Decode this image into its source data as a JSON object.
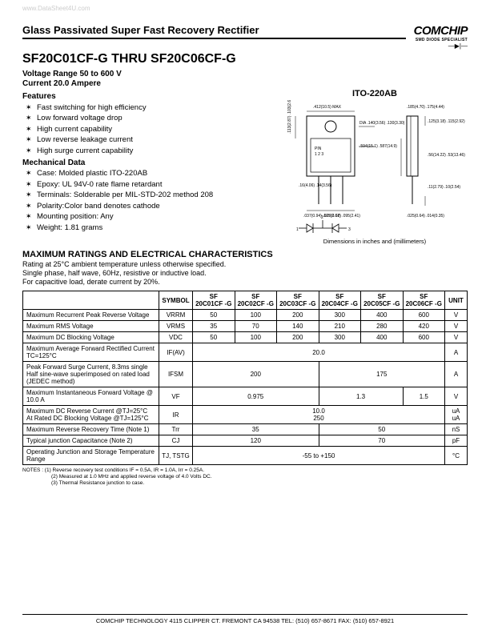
{
  "watermark": "www.DataSheet4U.com",
  "header": {
    "top_title": "Glass Passivated Super Fast Recovery Rectifier",
    "logo_main": "COMCHIP",
    "logo_sub": "SMD DIODE SPECIALIST",
    "part_title": "SF20C01CF-G THRU SF20C06CF-G",
    "voltage_range": "Voltage Range 50 to 600 V",
    "current": "Current 20.0 Ampere"
  },
  "sections": {
    "features_title": "Features",
    "features": [
      "Fast switching for high efficiency",
      "Low forward voltage drop",
      "High current capability",
      "Low reverse leakage current",
      "High surge current capability"
    ],
    "mech_title": "Mechanical Data",
    "mech": [
      "Case: Molded plastic ITO-220AB",
      "Epoxy: UL 94V-0 rate flame retardant",
      "Terminals: Solderable per MIL-STD-202 method 208",
      "Polarity:Color band denotes cathode",
      "Mounting position: Any",
      "Weight: 1.81 grams"
    ]
  },
  "package": {
    "label": "ITO-220AB",
    "caption": "Dimensions in inches and (millimeters)",
    "dims": {
      "top_w": ".412(10.5) MAX",
      "hole": "DIA .140(3.56) .130(3.30)",
      "tab_r": ".185(4.70) .175(4.44)",
      "body_h": ".113(2.87) .103(2.61)",
      "body_w": ".594(15.1) .587(14.9)",
      "pin_lbl": "PIN 1 2 3",
      "lead_l": ".16(4.06) .14(3.56)",
      "lead_t": ".037(0.94) .027(0.68)",
      "lead_sp": ".105(2.67) .095(2.41)",
      "side_h": ".56(14.22) .53(13.46)",
      "side_off": ".11(2.79) .10(2.54)",
      "side_thk": ".025(0.64) .014(0.35)",
      "side_tab": ".125(3.18) .115(2.92)",
      "overall": ".226(5.73)"
    }
  },
  "ratings": {
    "title": "MAXIMUM RATINGS AND ELECTRICAL CHARACTERISTICS",
    "note1": "Rating at 25°C ambient temperature unless otherwise specified.",
    "note2": "Single phase, half wave, 60Hz, resistive or inductive load.",
    "note3": "For capacitive load, derate current by 20%.",
    "col_symbol": "SYMBOL",
    "col_unit": "UNIT",
    "parts": [
      "SF 20C01CF -G",
      "SF 20C02CF -G",
      "SF 20C03CF -G",
      "SF 20C04CF -G",
      "SF 20C05CF -G",
      "SF 20C06CF -G"
    ],
    "rows": [
      {
        "param": "Maximum Recurrent Peak Reverse Voltage",
        "sym": "VRRM",
        "vals": [
          "50",
          "100",
          "200",
          "300",
          "400",
          "600"
        ],
        "unit": "V"
      },
      {
        "param": "Maximum RMS Voltage",
        "sym": "VRMS",
        "vals": [
          "35",
          "70",
          "140",
          "210",
          "280",
          "420"
        ],
        "unit": "V"
      },
      {
        "param": "Maximum DC Blocking Voltage",
        "sym": "VDC",
        "vals": [
          "50",
          "100",
          "200",
          "300",
          "400",
          "600"
        ],
        "unit": "V"
      },
      {
        "param": "Maximum Average Forward Rectified Current TC=125°C",
        "sym": "IF(AV)",
        "span": "20.0",
        "unit": "A"
      },
      {
        "param": "Peak Forward Surge Current, 8.3ms single Half sine-wave superimposed on rated load (JEDEC method)",
        "sym": "IFSM",
        "spanL": "200",
        "spanR": "175",
        "split": 3,
        "unit": "A"
      },
      {
        "param": "Maximum Instantaneous Forward Voltage @ 10.0 A",
        "sym": "VF",
        "spanL": "0.975",
        "spanM": "1.3",
        "spanR": "1.5",
        "split3": true,
        "unit": "V"
      },
      {
        "param": "Maximum DC Reverse Current @TJ=25°C\nAt Rated DC Blocking Voltage @TJ=125°C",
        "sym": "IR",
        "stacked": [
          "10.0",
          "250"
        ],
        "unit": "uA\nuA"
      },
      {
        "param": "Maximum Reverse Recovery Time (Note 1)",
        "sym": "Trr",
        "spanL": "35",
        "spanR": "50",
        "split": 3,
        "unit": "nS"
      },
      {
        "param": "Typical junction Capacitance (Note 2)",
        "sym": "CJ",
        "spanL": "120",
        "spanR": "70",
        "split": 3,
        "unit": "pF"
      },
      {
        "param": "Operating Junction and Storage Temperature Range",
        "sym": "TJ, TSTG",
        "span": "-55 to +150",
        "unit": "°C"
      }
    ]
  },
  "notes": {
    "n1": "NOTES : (1) Reverse recovery test conditions IF = 0.5A, IR = 1.0A, Irr = 0.25A.",
    "n2": "(2) Measured at 1.0 MHz and applied reverse voltage of 4.0 Volts DC.",
    "n3": "(3) Thermal Resistance junction to case."
  },
  "footer": "COMCHIP TECHNOLOGY   4115 CLIPPER CT. FREMONT CA 94538   TEL: (510) 657-8671 FAX: (510) 657-8921",
  "style": {
    "colors": {
      "text": "#000000",
      "background": "#ffffff",
      "watermark": "#cccccc",
      "border": "#000000"
    },
    "fonts": {
      "family": "Arial, sans-serif",
      "title_size": 16,
      "subtitle_size": 13,
      "body_size": 9,
      "table_size": 8,
      "notes_size": 6.5
    }
  }
}
